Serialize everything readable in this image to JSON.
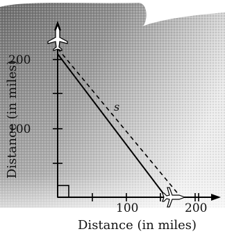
{
  "diagram": {
    "axis_x_label": "Distance (in miles)",
    "axis_y_label": "Distance (in miles)",
    "x_ticks": [
      "100",
      "200"
    ],
    "y_ticks": [
      "100",
      "200"
    ],
    "segment_label": "s",
    "right_angle_marker": "right-angle",
    "plane_vertical_icon": "airplane-icon",
    "plane_horizontal_icon": "airplane-icon"
  }
}
